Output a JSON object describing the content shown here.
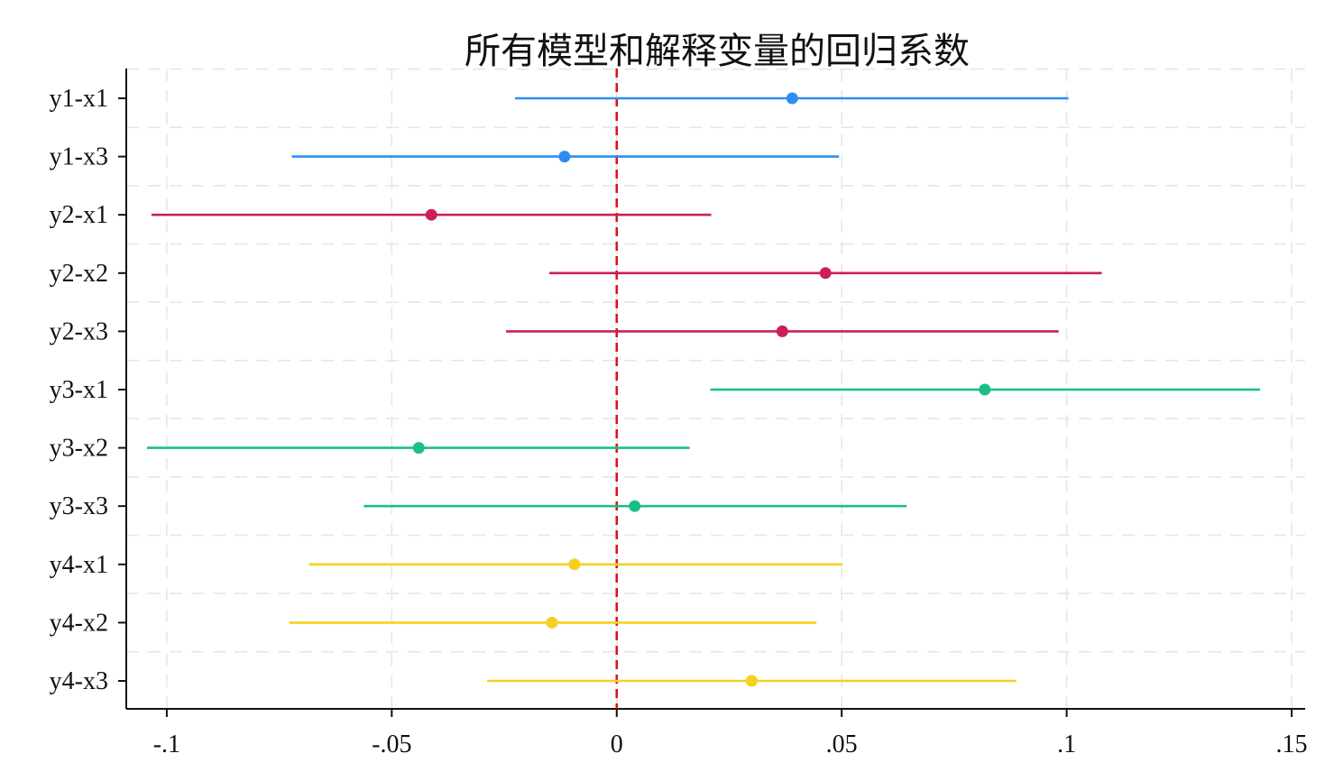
{
  "chart_data": {
    "type": "coefficient-plot",
    "title": "所有模型和解释变量的回归系数",
    "xlabel": "",
    "ylabel": "",
    "xlim": [
      -0.109,
      0.153
    ],
    "xticks": [
      {
        "value": -0.1,
        "label": "-.1"
      },
      {
        "value": -0.05,
        "label": "-.05"
      },
      {
        "value": 0,
        "label": "0"
      },
      {
        "value": 0.05,
        "label": ".05"
      },
      {
        "value": 0.1,
        "label": ".1"
      },
      {
        "value": 0.15,
        "label": ".15"
      }
    ],
    "reference_line": {
      "value": 0,
      "color": "#d9141c",
      "style": "dashed"
    },
    "grid": true,
    "legend": "none",
    "points": [
      {
        "label": "y1-x1",
        "estimate": 0.039,
        "lower": -0.0226,
        "upper": 0.1004,
        "color": "#2e8ef0"
      },
      {
        "label": "y1-x3",
        "estimate": -0.0116,
        "lower": -0.0722,
        "upper": 0.0494,
        "color": "#2e8ef0"
      },
      {
        "label": "y2-x1",
        "estimate": -0.0412,
        "lower": -0.1034,
        "upper": 0.021,
        "color": "#cc1f5a"
      },
      {
        "label": "y2-x2",
        "estimate": 0.0464,
        "lower": -0.015,
        "upper": 0.1078,
        "color": "#cc1f5a"
      },
      {
        "label": "y2-x3",
        "estimate": 0.0368,
        "lower": -0.0246,
        "upper": 0.0982,
        "color": "#cc1f5a"
      },
      {
        "label": "y3-x1",
        "estimate": 0.0818,
        "lower": 0.0208,
        "upper": 0.143,
        "color": "#1abf86"
      },
      {
        "label": "y3-x2",
        "estimate": -0.044,
        "lower": -0.1044,
        "upper": 0.0162,
        "color": "#1abf86"
      },
      {
        "label": "y3-x3",
        "estimate": 0.004,
        "lower": -0.0562,
        "upper": 0.0644,
        "color": "#1abf86"
      },
      {
        "label": "y4-x1",
        "estimate": -0.0094,
        "lower": -0.0684,
        "upper": 0.0502,
        "color": "#f5d020"
      },
      {
        "label": "y4-x2",
        "estimate": -0.0144,
        "lower": -0.0728,
        "upper": 0.0444,
        "color": "#f5d020"
      },
      {
        "label": "y4-x3",
        "estimate": 0.03,
        "lower": -0.0288,
        "upper": 0.0888,
        "color": "#f5d020"
      }
    ]
  }
}
